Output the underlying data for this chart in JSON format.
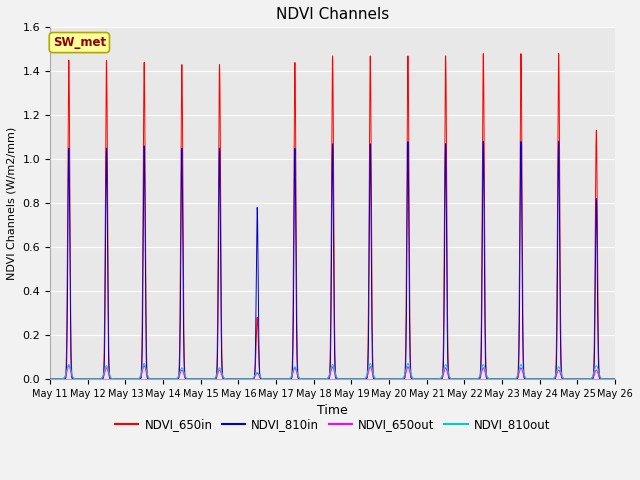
{
  "title": "NDVI Channels",
  "xlabel": "Time",
  "ylabel": "NDVI Channels (W/m2/mm)",
  "annotation": "SW_met",
  "ylim": [
    0,
    1.6
  ],
  "colors": {
    "NDVI_650in": "#ff0000",
    "NDVI_810in": "#0000cd",
    "NDVI_650out": "#ff00ff",
    "NDVI_810out": "#00cccc"
  },
  "peak_650in": [
    1.45,
    1.45,
    1.44,
    1.43,
    1.43,
    0.28,
    1.44,
    1.47,
    1.47,
    1.47,
    1.47,
    1.48,
    1.48,
    1.48,
    1.13
  ],
  "peak_810in": [
    1.05,
    1.05,
    1.06,
    1.05,
    1.05,
    0.78,
    1.05,
    1.07,
    1.07,
    1.08,
    1.07,
    1.08,
    1.08,
    1.08,
    0.82
  ],
  "peak_650out": [
    0.06,
    0.05,
    0.06,
    0.04,
    0.04,
    0.025,
    0.05,
    0.055,
    0.055,
    0.055,
    0.05,
    0.05,
    0.05,
    0.04,
    0.04
  ],
  "peak_810out": [
    0.065,
    0.06,
    0.07,
    0.05,
    0.05,
    0.03,
    0.055,
    0.065,
    0.07,
    0.07,
    0.065,
    0.065,
    0.065,
    0.055,
    0.06
  ],
  "tick_labels": [
    "May 11",
    "May 12",
    "May 13",
    "May 14",
    "May 15",
    "May 16",
    "May 17",
    "May 18",
    "May 19",
    "May 20",
    "May 21",
    "May 22",
    "May 23",
    "May 24",
    "May 25",
    "May 26"
  ],
  "yticks": [
    0.0,
    0.2,
    0.4,
    0.6,
    0.8,
    1.0,
    1.2,
    1.4,
    1.6
  ],
  "background_color": "#e8e8e8",
  "grid_color": "#ffffff",
  "legend_line_colors": [
    "#ff0000",
    "#0000cd",
    "#ff00ff",
    "#00cccc"
  ],
  "legend_labels": [
    "NDVI_650in",
    "NDVI_810in",
    "NDVI_650out",
    "NDVI_810out"
  ],
  "fig_bg": "#f2f2f2"
}
